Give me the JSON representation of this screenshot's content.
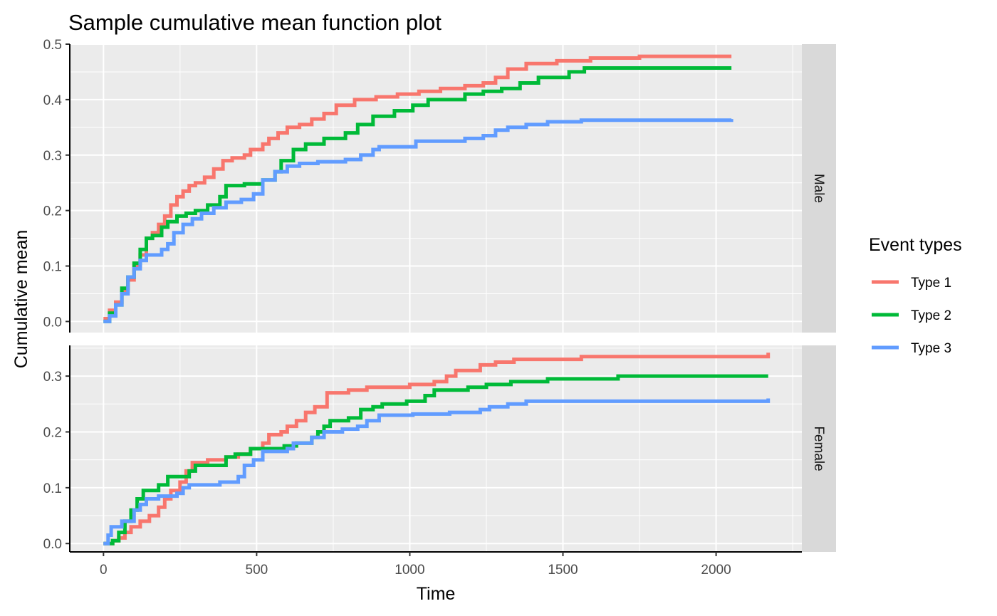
{
  "chart_data": {
    "type": "line",
    "title": "Sample cumulative mean function plot",
    "xlabel": "Time",
    "ylabel": "Cumulative mean",
    "xlim": [
      -110,
      2280
    ],
    "x_ticks": [
      0,
      500,
      1000,
      1500,
      2000
    ],
    "grid": true,
    "legend_title": "Event types",
    "legend_position": "right",
    "panels": [
      {
        "label": "Male",
        "ylim": [
          -0.02,
          0.5
        ],
        "y_ticks": [
          0.0,
          0.1,
          0.2,
          0.3,
          0.4,
          0.5
        ],
        "y_tick_labels": [
          "0.0",
          "0.1",
          "0.2",
          "0.3",
          "0.4",
          "0.5"
        ],
        "series": [
          {
            "name": "Type 1",
            "color": "#F8766D",
            "points": [
              [
                0,
                0.005
              ],
              [
                20,
                0.02
              ],
              [
                40,
                0.035
              ],
              [
                60,
                0.055
              ],
              [
                80,
                0.075
              ],
              [
                100,
                0.1
              ],
              [
                120,
                0.12
              ],
              [
                140,
                0.15
              ],
              [
                160,
                0.16
              ],
              [
                180,
                0.175
              ],
              [
                200,
                0.19
              ],
              [
                220,
                0.21
              ],
              [
                240,
                0.225
              ],
              [
                260,
                0.235
              ],
              [
                280,
                0.245
              ],
              [
                300,
                0.25
              ],
              [
                330,
                0.26
              ],
              [
                360,
                0.275
              ],
              [
                390,
                0.29
              ],
              [
                420,
                0.295
              ],
              [
                460,
                0.3
              ],
              [
                480,
                0.31
              ],
              [
                520,
                0.32
              ],
              [
                540,
                0.33
              ],
              [
                570,
                0.34
              ],
              [
                600,
                0.35
              ],
              [
                640,
                0.355
              ],
              [
                680,
                0.365
              ],
              [
                720,
                0.375
              ],
              [
                760,
                0.39
              ],
              [
                820,
                0.4
              ],
              [
                890,
                0.405
              ],
              [
                960,
                0.41
              ],
              [
                1030,
                0.415
              ],
              [
                1100,
                0.42
              ],
              [
                1180,
                0.425
              ],
              [
                1240,
                0.43
              ],
              [
                1280,
                0.44
              ],
              [
                1320,
                0.455
              ],
              [
                1380,
                0.465
              ],
              [
                1480,
                0.47
              ],
              [
                1590,
                0.475
              ],
              [
                1750,
                0.478
              ],
              [
                2050,
                0.478
              ]
            ]
          },
          {
            "name": "Type 2",
            "color": "#00BA38",
            "points": [
              [
                0,
                0.0
              ],
              [
                20,
                0.015
              ],
              [
                40,
                0.03
              ],
              [
                60,
                0.06
              ],
              [
                80,
                0.08
              ],
              [
                100,
                0.105
              ],
              [
                120,
                0.13
              ],
              [
                140,
                0.15
              ],
              [
                160,
                0.155
              ],
              [
                190,
                0.17
              ],
              [
                210,
                0.18
              ],
              [
                240,
                0.19
              ],
              [
                270,
                0.195
              ],
              [
                300,
                0.2
              ],
              [
                340,
                0.21
              ],
              [
                380,
                0.225
              ],
              [
                400,
                0.245
              ],
              [
                460,
                0.248
              ],
              [
                520,
                0.255
              ],
              [
                560,
                0.27
              ],
              [
                580,
                0.29
              ],
              [
                620,
                0.31
              ],
              [
                660,
                0.32
              ],
              [
                720,
                0.33
              ],
              [
                790,
                0.34
              ],
              [
                830,
                0.355
              ],
              [
                880,
                0.37
              ],
              [
                950,
                0.38
              ],
              [
                1010,
                0.39
              ],
              [
                1060,
                0.4
              ],
              [
                1180,
                0.41
              ],
              [
                1240,
                0.415
              ],
              [
                1300,
                0.42
              ],
              [
                1360,
                0.43
              ],
              [
                1420,
                0.44
              ],
              [
                1520,
                0.45
              ],
              [
                1570,
                0.457
              ],
              [
                2050,
                0.457
              ]
            ]
          },
          {
            "name": "Type 3",
            "color": "#619CFF",
            "points": [
              [
                0,
                0.0
              ],
              [
                20,
                0.01
              ],
              [
                40,
                0.03
              ],
              [
                60,
                0.05
              ],
              [
                80,
                0.08
              ],
              [
                100,
                0.095
              ],
              [
                120,
                0.11
              ],
              [
                140,
                0.12
              ],
              [
                190,
                0.13
              ],
              [
                210,
                0.14
              ],
              [
                230,
                0.16
              ],
              [
                260,
                0.175
              ],
              [
                290,
                0.185
              ],
              [
                320,
                0.195
              ],
              [
                360,
                0.205
              ],
              [
                400,
                0.215
              ],
              [
                450,
                0.22
              ],
              [
                490,
                0.23
              ],
              [
                520,
                0.255
              ],
              [
                560,
                0.27
              ],
              [
                600,
                0.28
              ],
              [
                640,
                0.285
              ],
              [
                700,
                0.288
              ],
              [
                790,
                0.292
              ],
              [
                840,
                0.3
              ],
              [
                880,
                0.31
              ],
              [
                900,
                0.315
              ],
              [
                990,
                0.315
              ],
              [
                1020,
                0.325
              ],
              [
                1180,
                0.33
              ],
              [
                1240,
                0.335
              ],
              [
                1280,
                0.345
              ],
              [
                1320,
                0.35
              ],
              [
                1380,
                0.355
              ],
              [
                1450,
                0.36
              ],
              [
                1560,
                0.363
              ],
              [
                2050,
                0.365
              ]
            ]
          }
        ]
      },
      {
        "label": "Female",
        "ylim": [
          -0.015,
          0.355
        ],
        "y_ticks": [
          0.0,
          0.1,
          0.2,
          0.3
        ],
        "y_tick_labels": [
          "0.0",
          "0.1",
          "0.2",
          "0.3"
        ],
        "series": [
          {
            "name": "Type 1",
            "color": "#F8766D",
            "points": [
              [
                0,
                0.0
              ],
              [
                30,
                0.005
              ],
              [
                50,
                0.01
              ],
              [
                70,
                0.02
              ],
              [
                90,
                0.03
              ],
              [
                120,
                0.04
              ],
              [
                150,
                0.05
              ],
              [
                180,
                0.065
              ],
              [
                200,
                0.08
              ],
              [
                220,
                0.095
              ],
              [
                250,
                0.11
              ],
              [
                270,
                0.13
              ],
              [
                290,
                0.145
              ],
              [
                340,
                0.15
              ],
              [
                400,
                0.155
              ],
              [
                440,
                0.16
              ],
              [
                480,
                0.17
              ],
              [
                520,
                0.18
              ],
              [
                540,
                0.195
              ],
              [
                580,
                0.2
              ],
              [
                600,
                0.21
              ],
              [
                630,
                0.22
              ],
              [
                660,
                0.235
              ],
              [
                690,
                0.245
              ],
              [
                730,
                0.27
              ],
              [
                800,
                0.275
              ],
              [
                860,
                0.28
              ],
              [
                1000,
                0.285
              ],
              [
                1080,
                0.29
              ],
              [
                1120,
                0.3
              ],
              [
                1150,
                0.31
              ],
              [
                1230,
                0.32
              ],
              [
                1280,
                0.325
              ],
              [
                1340,
                0.33
              ],
              [
                1560,
                0.335
              ],
              [
                2150,
                0.335
              ],
              [
                2170,
                0.342
              ]
            ]
          },
          {
            "name": "Type 2",
            "color": "#00BA38",
            "points": [
              [
                0,
                0.0
              ],
              [
                30,
                0.005
              ],
              [
                50,
                0.02
              ],
              [
                70,
                0.04
              ],
              [
                90,
                0.06
              ],
              [
                110,
                0.08
              ],
              [
                130,
                0.095
              ],
              [
                180,
                0.105
              ],
              [
                210,
                0.12
              ],
              [
                280,
                0.13
              ],
              [
                300,
                0.14
              ],
              [
                400,
                0.155
              ],
              [
                430,
                0.16
              ],
              [
                480,
                0.17
              ],
              [
                590,
                0.175
              ],
              [
                630,
                0.18
              ],
              [
                680,
                0.19
              ],
              [
                700,
                0.2
              ],
              [
                720,
                0.21
              ],
              [
                740,
                0.22
              ],
              [
                800,
                0.225
              ],
              [
                840,
                0.24
              ],
              [
                880,
                0.245
              ],
              [
                910,
                0.25
              ],
              [
                990,
                0.255
              ],
              [
                1050,
                0.265
              ],
              [
                1080,
                0.275
              ],
              [
                1190,
                0.28
              ],
              [
                1250,
                0.285
              ],
              [
                1330,
                0.29
              ],
              [
                1450,
                0.295
              ],
              [
                1680,
                0.3
              ],
              [
                2170,
                0.3
              ]
            ]
          },
          {
            "name": "Type 3",
            "color": "#619CFF",
            "points": [
              [
                0,
                0.0
              ],
              [
                15,
                0.015
              ],
              [
                25,
                0.03
              ],
              [
                60,
                0.04
              ],
              [
                100,
                0.06
              ],
              [
                120,
                0.07
              ],
              [
                140,
                0.08
              ],
              [
                180,
                0.085
              ],
              [
                240,
                0.09
              ],
              [
                260,
                0.1
              ],
              [
                280,
                0.105
              ],
              [
                380,
                0.11
              ],
              [
                440,
                0.12
              ],
              [
                460,
                0.14
              ],
              [
                490,
                0.15
              ],
              [
                520,
                0.165
              ],
              [
                600,
                0.17
              ],
              [
                620,
                0.18
              ],
              [
                680,
                0.19
              ],
              [
                720,
                0.2
              ],
              [
                780,
                0.205
              ],
              [
                830,
                0.21
              ],
              [
                860,
                0.22
              ],
              [
                900,
                0.23
              ],
              [
                1010,
                0.232
              ],
              [
                1130,
                0.235
              ],
              [
                1230,
                0.24
              ],
              [
                1260,
                0.245
              ],
              [
                1320,
                0.25
              ],
              [
                1380,
                0.255
              ],
              [
                2150,
                0.255
              ],
              [
                2170,
                0.26
              ]
            ]
          }
        ]
      }
    ]
  }
}
